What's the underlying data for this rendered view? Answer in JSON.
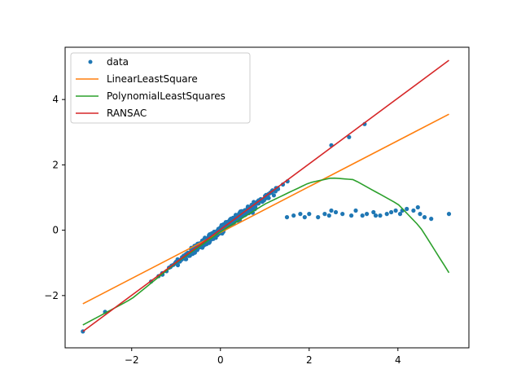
{
  "chart_data": {
    "type": "scatter",
    "title": "",
    "xlabel": "",
    "ylabel": "",
    "xlim": [
      -3.5,
      5.6
    ],
    "ylim": [
      -3.6,
      5.6
    ],
    "xticks": [
      -2,
      0,
      2,
      4
    ],
    "yticks": [
      -2,
      0,
      2,
      4
    ],
    "xtick_labels": [
      "−2",
      "0",
      "2",
      "4"
    ],
    "ytick_labels": [
      "−2",
      "0",
      "2",
      "4"
    ],
    "grid": false,
    "legend_position": "upper-left",
    "colors": {
      "data": "#1f77b4",
      "linear": "#ff7f0e",
      "polynomial": "#2ca02c",
      "ransac": "#d62728"
    },
    "scatter": {
      "name": "data",
      "inliers_x_range": [
        -3.1,
        3.25
      ],
      "inliers_relation": "y = x with small noise",
      "outliers": [
        [
          1.5,
          0.4
        ],
        [
          1.65,
          0.45
        ],
        [
          1.8,
          0.5
        ],
        [
          1.9,
          0.4
        ],
        [
          2.2,
          0.4
        ],
        [
          2.35,
          0.5
        ],
        [
          2.45,
          0.45
        ],
        [
          2.6,
          0.55
        ],
        [
          2.75,
          0.5
        ],
        [
          2.95,
          0.45
        ],
        [
          3.05,
          0.6
        ],
        [
          3.2,
          0.45
        ],
        [
          3.3,
          0.5
        ],
        [
          3.45,
          0.55
        ],
        [
          3.6,
          0.45
        ],
        [
          3.75,
          0.5
        ],
        [
          3.85,
          0.55
        ],
        [
          3.95,
          0.6
        ],
        [
          4.05,
          0.5
        ],
        [
          4.2,
          0.65
        ],
        [
          4.35,
          0.6
        ],
        [
          4.5,
          0.5
        ],
        [
          4.6,
          0.4
        ],
        [
          4.75,
          0.35
        ],
        [
          5.15,
          0.5
        ],
        [
          2.0,
          0.5
        ],
        [
          2.5,
          0.6
        ],
        [
          3.5,
          0.45
        ],
        [
          4.1,
          0.6
        ],
        [
          4.45,
          0.7
        ]
      ]
    },
    "series": [
      {
        "name": "LinearLeastSquare",
        "x": [
          -3.1,
          5.15
        ],
        "y": [
          -2.25,
          3.55
        ]
      },
      {
        "name": "PolynomialLeastSquares",
        "x": [
          -3.1,
          -2,
          -1,
          0,
          1,
          2,
          2.5,
          3,
          4,
          4.5,
          5.15
        ],
        "y": [
          -2.9,
          -2.1,
          -1.0,
          -0.05,
          0.8,
          1.45,
          1.6,
          1.55,
          0.8,
          0.1,
          -1.3
        ]
      },
      {
        "name": "RANSAC",
        "x": [
          -3.1,
          5.15
        ],
        "y": [
          -3.1,
          5.2
        ]
      }
    ],
    "legend": [
      "data",
      "LinearLeastSquare",
      "PolynomialLeastSquares",
      "RANSAC"
    ]
  }
}
